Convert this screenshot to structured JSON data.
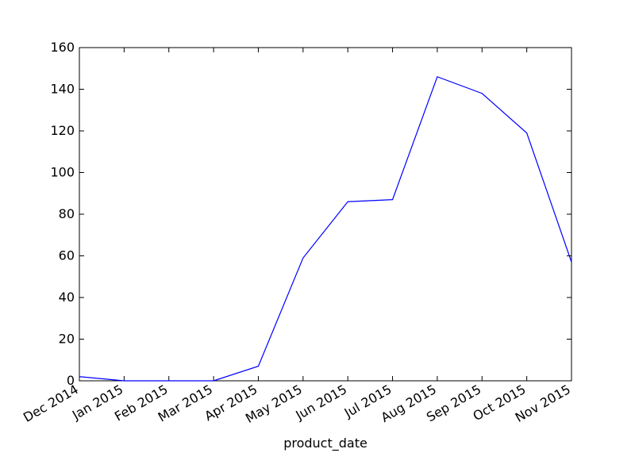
{
  "chart_data": {
    "type": "line",
    "title": "",
    "xlabel": "product_date",
    "ylabel": "",
    "categories": [
      "Dec 2014",
      "Jan 2015",
      "Feb 2015",
      "Mar 2015",
      "Apr 2015",
      "May 2015",
      "Jun 2015",
      "Jul 2015",
      "Aug 2015",
      "Sep 2015",
      "Oct 2015",
      "Nov 2015"
    ],
    "series": [
      {
        "values": [
          2,
          0,
          0,
          0,
          7,
          59,
          86,
          87,
          146,
          138,
          119,
          57
        ]
      }
    ],
    "ylim": [
      0,
      160
    ],
    "yticks": [
      0,
      20,
      40,
      60,
      80,
      100,
      120,
      140,
      160
    ],
    "grid": false,
    "legend": "none",
    "colors": {
      "line": "#0000ff",
      "axes": "#000000",
      "background": "#ffffff"
    }
  }
}
